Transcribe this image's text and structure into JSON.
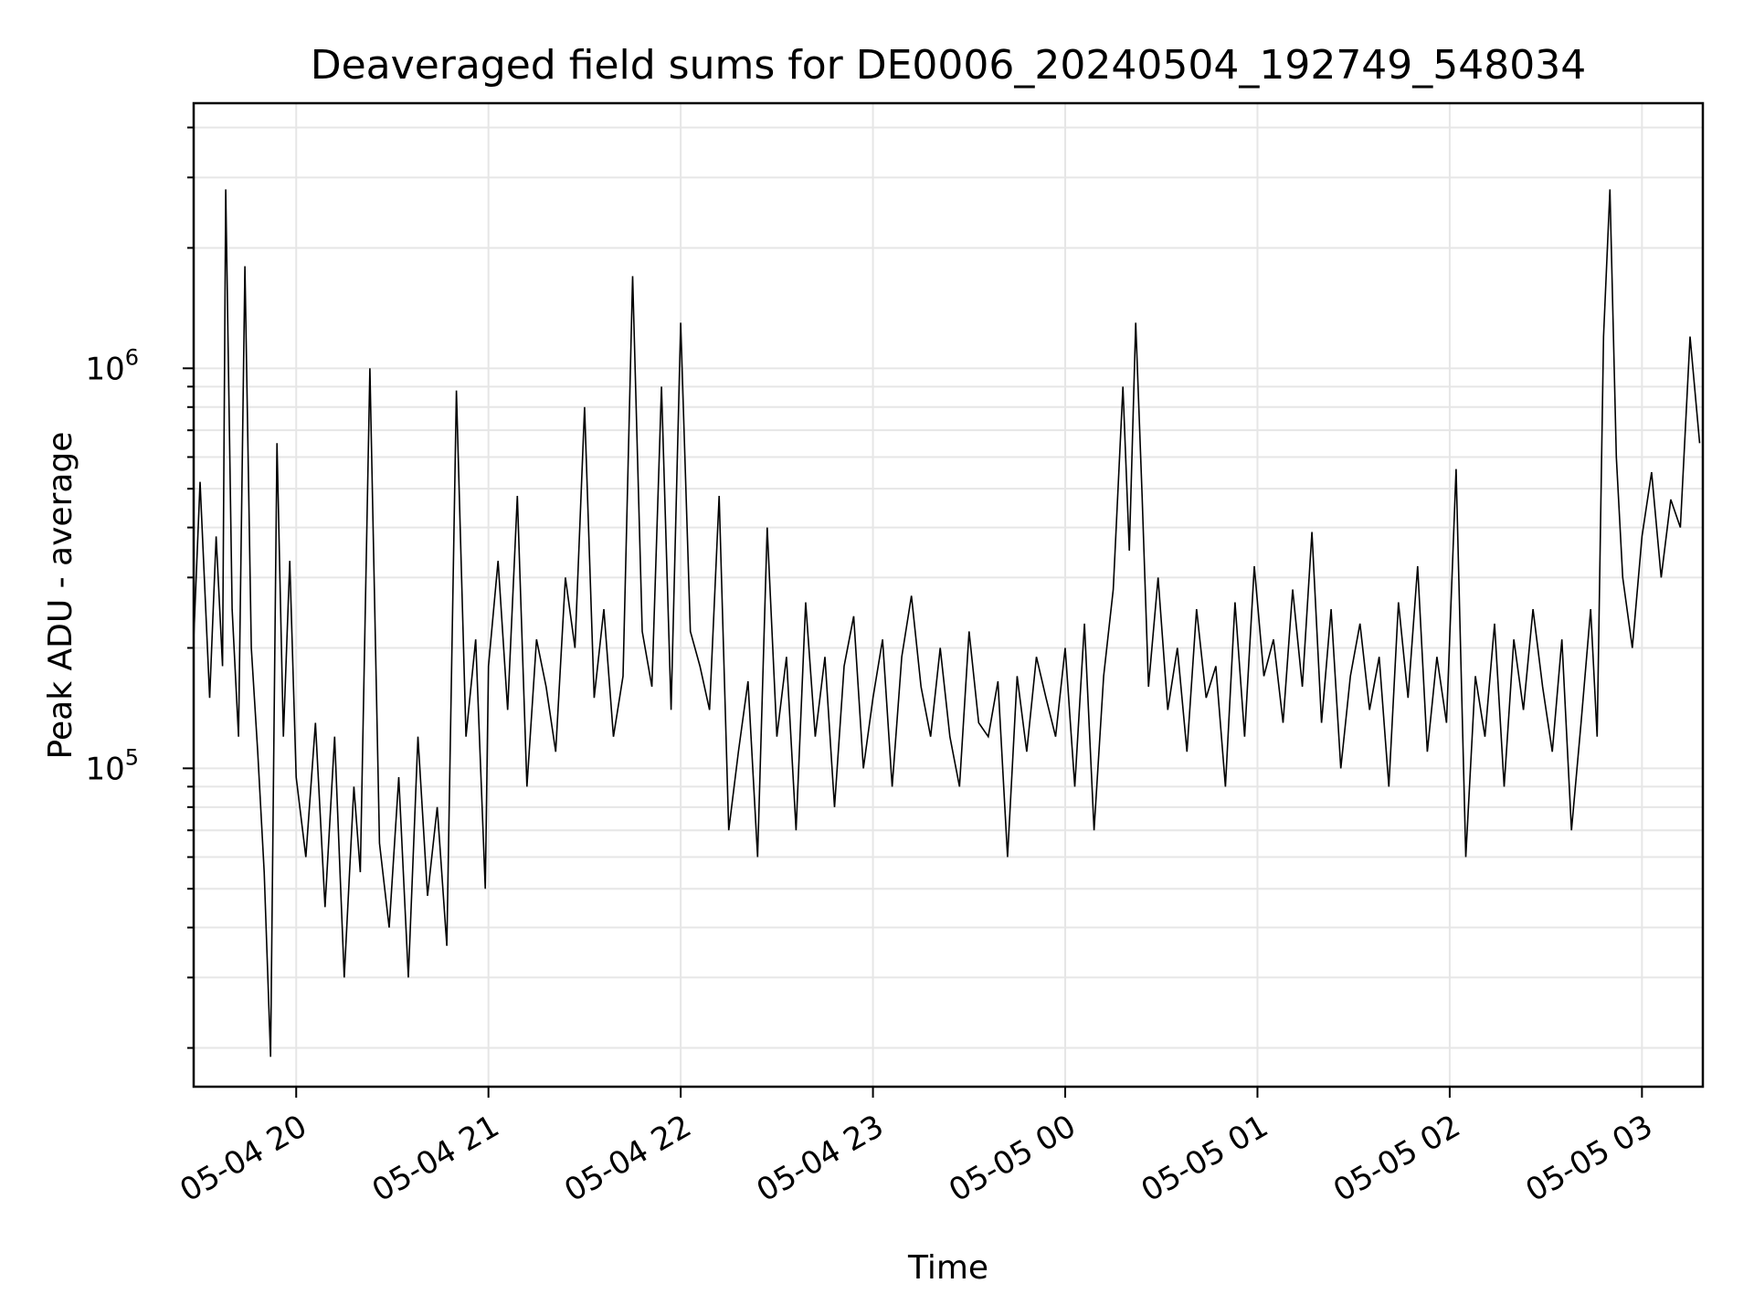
{
  "chart_data": {
    "type": "line",
    "title": "Deaveraged field sums for DE0006_20240504_192749_548034",
    "xlabel": "Time",
    "ylabel": "Peak ADU - average",
    "yscale": "log",
    "ylim": [
      16000,
      4600000
    ],
    "xlim": [
      "2024-05-04T19:28:00",
      "2024-05-05T03:19:00"
    ],
    "grid": true,
    "line_color": "#000000",
    "x_ticks": [
      {
        "value": "2024-05-04T20:00:00",
        "label": "05-04 20"
      },
      {
        "value": "2024-05-04T21:00:00",
        "label": "05-04 21"
      },
      {
        "value": "2024-05-04T22:00:00",
        "label": "05-04 22"
      },
      {
        "value": "2024-05-04T23:00:00",
        "label": "05-04 23"
      },
      {
        "value": "2024-05-05T00:00:00",
        "label": "05-05 00"
      },
      {
        "value": "2024-05-05T01:00:00",
        "label": "05-05 01"
      },
      {
        "value": "2024-05-05T02:00:00",
        "label": "05-05 02"
      },
      {
        "value": "2024-05-05T03:00:00",
        "label": "05-05 03"
      }
    ],
    "y_ticks": [
      {
        "value": 100000,
        "base": "10",
        "exp": "5"
      },
      {
        "value": 1000000,
        "base": "10",
        "exp": "6"
      }
    ],
    "series": [
      {
        "x": [
          "2024-05-04T19:28:00",
          "2024-05-04T19:30:00",
          "2024-05-04T19:33:00",
          "2024-05-04T19:35:00",
          "2024-05-04T19:37:00",
          "2024-05-04T19:38:00",
          "2024-05-04T19:40:00",
          "2024-05-04T19:42:00",
          "2024-05-04T19:44:00",
          "2024-05-04T19:46:00",
          "2024-05-04T19:48:00",
          "2024-05-04T19:50:00",
          "2024-05-04T19:52:00",
          "2024-05-04T19:54:00",
          "2024-05-04T19:56:00",
          "2024-05-04T19:58:00",
          "2024-05-04T20:00:00",
          "2024-05-04T20:03:00",
          "2024-05-04T20:06:00",
          "2024-05-04T20:09:00",
          "2024-05-04T20:12:00",
          "2024-05-04T20:15:00",
          "2024-05-04T20:18:00",
          "2024-05-04T20:20:00",
          "2024-05-04T20:23:00",
          "2024-05-04T20:26:00",
          "2024-05-04T20:29:00",
          "2024-05-04T20:32:00",
          "2024-05-04T20:35:00",
          "2024-05-04T20:38:00",
          "2024-05-04T20:41:00",
          "2024-05-04T20:44:00",
          "2024-05-04T20:47:00",
          "2024-05-04T20:50:00",
          "2024-05-04T20:53:00",
          "2024-05-04T20:56:00",
          "2024-05-04T20:59:00",
          "2024-05-04T21:00:00",
          "2024-05-04T21:03:00",
          "2024-05-04T21:06:00",
          "2024-05-04T21:09:00",
          "2024-05-04T21:12:00",
          "2024-05-04T21:15:00",
          "2024-05-04T21:18:00",
          "2024-05-04T21:21:00",
          "2024-05-04T21:24:00",
          "2024-05-04T21:27:00",
          "2024-05-04T21:30:00",
          "2024-05-04T21:33:00",
          "2024-05-04T21:36:00",
          "2024-05-04T21:39:00",
          "2024-05-04T21:42:00",
          "2024-05-04T21:45:00",
          "2024-05-04T21:48:00",
          "2024-05-04T21:51:00",
          "2024-05-04T21:54:00",
          "2024-05-04T21:57:00",
          "2024-05-04T22:00:00",
          "2024-05-04T22:03:00",
          "2024-05-04T22:06:00",
          "2024-05-04T22:09:00",
          "2024-05-04T22:12:00",
          "2024-05-04T22:15:00",
          "2024-05-04T22:18:00",
          "2024-05-04T22:21:00",
          "2024-05-04T22:24:00",
          "2024-05-04T22:27:00",
          "2024-05-04T22:30:00",
          "2024-05-04T22:33:00",
          "2024-05-04T22:36:00",
          "2024-05-04T22:39:00",
          "2024-05-04T22:42:00",
          "2024-05-04T22:45:00",
          "2024-05-04T22:48:00",
          "2024-05-04T22:51:00",
          "2024-05-04T22:54:00",
          "2024-05-04T22:57:00",
          "2024-05-04T23:00:00",
          "2024-05-04T23:03:00",
          "2024-05-04T23:06:00",
          "2024-05-04T23:09:00",
          "2024-05-04T23:12:00",
          "2024-05-04T23:15:00",
          "2024-05-04T23:18:00",
          "2024-05-04T23:21:00",
          "2024-05-04T23:24:00",
          "2024-05-04T23:27:00",
          "2024-05-04T23:30:00",
          "2024-05-04T23:33:00",
          "2024-05-04T23:36:00",
          "2024-05-04T23:39:00",
          "2024-05-04T23:42:00",
          "2024-05-04T23:45:00",
          "2024-05-04T23:48:00",
          "2024-05-04T23:51:00",
          "2024-05-04T23:54:00",
          "2024-05-04T23:57:00",
          "2024-05-05T00:00:00",
          "2024-05-05T00:03:00",
          "2024-05-05T00:06:00",
          "2024-05-05T00:09:00",
          "2024-05-05T00:12:00",
          "2024-05-05T00:15:00",
          "2024-05-05T00:18:00",
          "2024-05-05T00:20:00",
          "2024-05-05T00:22:00",
          "2024-05-05T00:24:00",
          "2024-05-05T00:26:00",
          "2024-05-05T00:29:00",
          "2024-05-05T00:32:00",
          "2024-05-05T00:35:00",
          "2024-05-05T00:38:00",
          "2024-05-05T00:41:00",
          "2024-05-05T00:44:00",
          "2024-05-05T00:47:00",
          "2024-05-05T00:50:00",
          "2024-05-05T00:53:00",
          "2024-05-05T00:56:00",
          "2024-05-05T00:59:00",
          "2024-05-05T01:02:00",
          "2024-05-05T01:05:00",
          "2024-05-05T01:08:00",
          "2024-05-05T01:11:00",
          "2024-05-05T01:14:00",
          "2024-05-05T01:17:00",
          "2024-05-05T01:20:00",
          "2024-05-05T01:23:00",
          "2024-05-05T01:26:00",
          "2024-05-05T01:29:00",
          "2024-05-05T01:32:00",
          "2024-05-05T01:35:00",
          "2024-05-05T01:38:00",
          "2024-05-05T01:41:00",
          "2024-05-05T01:44:00",
          "2024-05-05T01:47:00",
          "2024-05-05T01:50:00",
          "2024-05-05T01:53:00",
          "2024-05-05T01:56:00",
          "2024-05-05T01:59:00",
          "2024-05-05T02:02:00",
          "2024-05-05T02:05:00",
          "2024-05-05T02:08:00",
          "2024-05-05T02:11:00",
          "2024-05-05T02:14:00",
          "2024-05-05T02:17:00",
          "2024-05-05T02:20:00",
          "2024-05-05T02:23:00",
          "2024-05-05T02:26:00",
          "2024-05-05T02:29:00",
          "2024-05-05T02:32:00",
          "2024-05-05T02:35:00",
          "2024-05-05T02:38:00",
          "2024-05-05T02:41:00",
          "2024-05-05T02:44:00",
          "2024-05-05T02:46:00",
          "2024-05-05T02:48:00",
          "2024-05-05T02:50:00",
          "2024-05-05T02:52:00",
          "2024-05-05T02:54:00",
          "2024-05-05T02:57:00",
          "2024-05-05T03:00:00",
          "2024-05-05T03:03:00",
          "2024-05-05T03:06:00",
          "2024-05-05T03:09:00",
          "2024-05-05T03:12:00",
          "2024-05-05T03:15:00",
          "2024-05-05T03:18:00"
        ],
        "values": [
          210000,
          520000,
          150000,
          380000,
          180000,
          2800000,
          250000,
          120000,
          1800000,
          200000,
          110000,
          55000,
          19000,
          650000,
          120000,
          330000,
          95000,
          60000,
          130000,
          45000,
          120000,
          30000,
          90000,
          55000,
          1000000,
          65000,
          40000,
          95000,
          30000,
          120000,
          48000,
          80000,
          36000,
          880000,
          120000,
          210000,
          50000,
          180000,
          330000,
          140000,
          480000,
          90000,
          210000,
          160000,
          110000,
          300000,
          200000,
          800000,
          150000,
          250000,
          120000,
          170000,
          1700000,
          220000,
          160000,
          900000,
          140000,
          1300000,
          220000,
          180000,
          140000,
          480000,
          70000,
          110000,
          165000,
          60000,
          400000,
          120000,
          190000,
          70000,
          260000,
          120000,
          190000,
          80000,
          180000,
          240000,
          100000,
          150000,
          210000,
          90000,
          190000,
          270000,
          160000,
          120000,
          200000,
          120000,
          90000,
          220000,
          130000,
          120000,
          165000,
          60000,
          170000,
          110000,
          190000,
          150000,
          120000,
          200000,
          90000,
          230000,
          70000,
          170000,
          280000,
          900000,
          350000,
          1300000,
          480000,
          160000,
          300000,
          140000,
          200000,
          110000,
          250000,
          150000,
          180000,
          90000,
          260000,
          120000,
          320000,
          170000,
          210000,
          130000,
          280000,
          160000,
          390000,
          130000,
          250000,
          100000,
          170000,
          230000,
          140000,
          190000,
          90000,
          260000,
          150000,
          320000,
          110000,
          190000,
          130000,
          560000,
          60000,
          170000,
          120000,
          230000,
          90000,
          210000,
          140000,
          250000,
          160000,
          110000,
          210000,
          70000,
          130000,
          250000,
          120000,
          1200000,
          2800000,
          600000,
          300000,
          200000,
          380000,
          550000,
          300000,
          470000,
          400000,
          1200000,
          650000
        ]
      }
    ]
  }
}
